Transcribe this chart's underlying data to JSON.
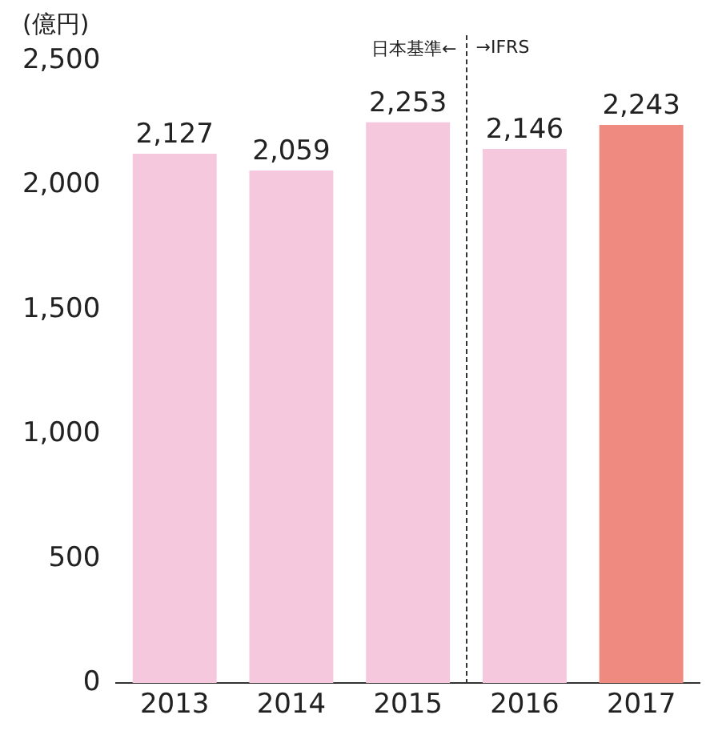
{
  "chart_data": {
    "type": "bar",
    "ylabel": "(億円)",
    "categories": [
      "2013",
      "2014",
      "2015",
      "2016",
      "2017"
    ],
    "values": [
      2127,
      2059,
      2253,
      2146,
      2243
    ],
    "value_labels": [
      "2,127",
      "2,059",
      "2,253",
      "2,146",
      "2,243"
    ],
    "colors": [
      "#f5c8dd",
      "#f5c8dd",
      "#f5c8dd",
      "#f5c8dd",
      "#ef8a80"
    ],
    "ylim": [
      0,
      2500
    ],
    "yticks": [
      0,
      500,
      {
        "value": 1000,
        "label": "1,000"
      },
      {
        "value": 1500,
        "label": "1,500"
      },
      {
        "value": 2000,
        "label": "2,000"
      },
      {
        "value": 2500,
        "label": "2,500"
      }
    ],
    "grid": false,
    "legend": false,
    "annotations": [
      "日本基準←",
      "→IFRS"
    ]
  }
}
